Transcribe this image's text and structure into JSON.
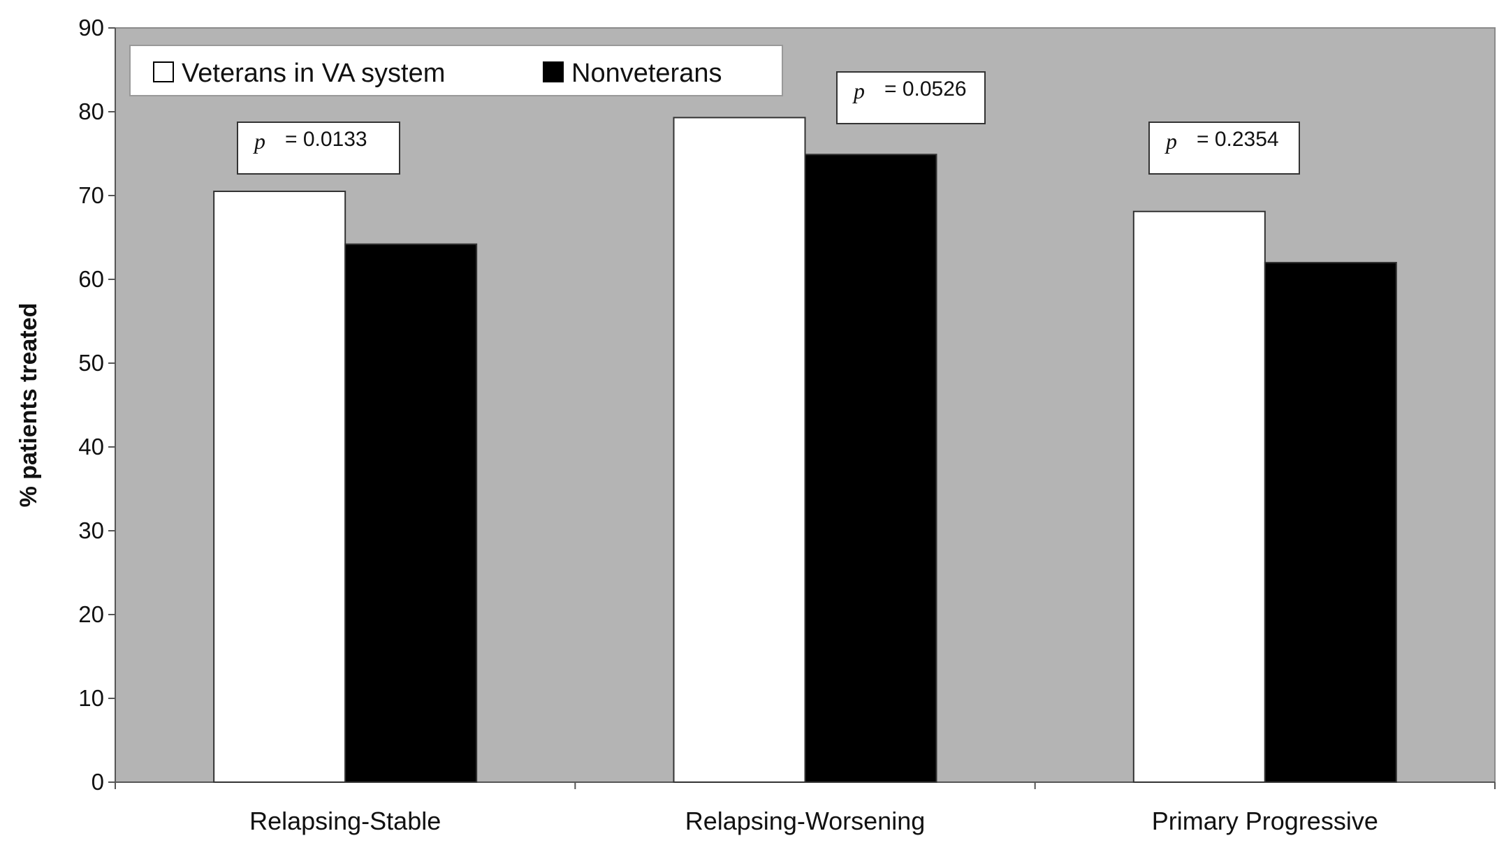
{
  "chart_data": {
    "type": "bar",
    "categories": [
      "Relapsing-Stable",
      "Relapsing-Worsening",
      "Primary Progressive"
    ],
    "series": [
      {
        "name": "Veterans in VA system",
        "values": [
          70.5,
          79.3,
          68.1
        ],
        "color": "#ffffff"
      },
      {
        "name": "Nonveterans",
        "values": [
          64.2,
          74.9,
          62.0
        ],
        "color": "#000000"
      }
    ],
    "ylabel": "% patients treated",
    "xlabel": "",
    "ylim": [
      0,
      90
    ],
    "yticks": [
      0,
      10,
      20,
      30,
      40,
      50,
      60,
      70,
      80,
      90
    ],
    "grid": false,
    "legend_position": "top-left",
    "plot_background": "#b4b4b4",
    "annotations": [
      {
        "category": "Relapsing-Stable",
        "symbol": "p",
        "text": "= 0.0133"
      },
      {
        "category": "Relapsing-Worsening",
        "symbol": "p",
        "text": "= 0.0526"
      },
      {
        "category": "Primary Progressive",
        "symbol": "p",
        "text": "= 0.2354"
      }
    ]
  }
}
